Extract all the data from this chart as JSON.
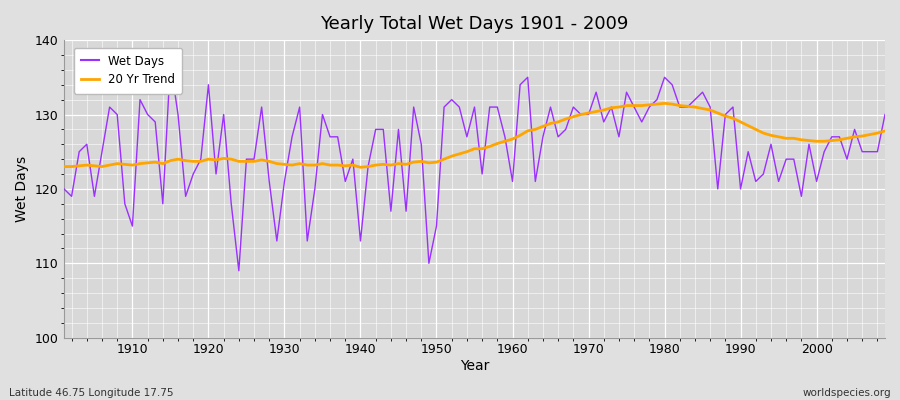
{
  "title": "Yearly Total Wet Days 1901 - 2009",
  "xlabel": "Year",
  "ylabel": "Wet Days",
  "ylim": [
    100,
    140
  ],
  "xlim": [
    1901,
    2009
  ],
  "yticks": [
    100,
    110,
    120,
    130,
    140
  ],
  "xticks": [
    1910,
    1920,
    1930,
    1940,
    1950,
    1960,
    1970,
    1980,
    1990,
    2000
  ],
  "wet_days_color": "#9B30FF",
  "trend_color": "#FFA500",
  "fig_bg_color": "#E0E0E0",
  "plot_bg_color": "#D8D8D8",
  "legend_labels": [
    "Wet Days",
    "20 Yr Trend"
  ],
  "footnote_left": "Latitude 46.75 Longitude 17.75",
  "footnote_right": "worldspecies.org",
  "years": [
    1901,
    1902,
    1903,
    1904,
    1905,
    1906,
    1907,
    1908,
    1909,
    1910,
    1911,
    1912,
    1913,
    1914,
    1915,
    1916,
    1917,
    1918,
    1919,
    1920,
    1921,
    1922,
    1923,
    1924,
    1925,
    1926,
    1927,
    1928,
    1929,
    1930,
    1931,
    1932,
    1933,
    1934,
    1935,
    1936,
    1937,
    1938,
    1939,
    1940,
    1941,
    1942,
    1943,
    1944,
    1945,
    1946,
    1947,
    1948,
    1949,
    1950,
    1951,
    1952,
    1953,
    1954,
    1955,
    1956,
    1957,
    1958,
    1959,
    1960,
    1961,
    1962,
    1963,
    1964,
    1965,
    1966,
    1967,
    1968,
    1969,
    1970,
    1971,
    1972,
    1973,
    1974,
    1975,
    1976,
    1977,
    1978,
    1979,
    1980,
    1981,
    1982,
    1983,
    1984,
    1985,
    1986,
    1987,
    1988,
    1989,
    1990,
    1991,
    1992,
    1993,
    1994,
    1995,
    1996,
    1997,
    1998,
    1999,
    2000,
    2001,
    2002,
    2003,
    2004,
    2005,
    2006,
    2007,
    2008,
    2009
  ],
  "wet_days": [
    120,
    119,
    125,
    126,
    119,
    125,
    131,
    130,
    118,
    115,
    132,
    130,
    129,
    118,
    137,
    130,
    119,
    122,
    124,
    134,
    122,
    130,
    118,
    109,
    124,
    124,
    131,
    121,
    113,
    121,
    127,
    131,
    113,
    120,
    130,
    127,
    127,
    121,
    124,
    113,
    123,
    128,
    128,
    117,
    128,
    117,
    131,
    126,
    110,
    115,
    131,
    132,
    131,
    127,
    131,
    122,
    131,
    131,
    127,
    121,
    134,
    135,
    121,
    127,
    131,
    127,
    128,
    131,
    130,
    130,
    133,
    129,
    131,
    127,
    133,
    131,
    129,
    131,
    132,
    135,
    134,
    131,
    131,
    132,
    133,
    131,
    120,
    130,
    131,
    120,
    125,
    121,
    122,
    126,
    121,
    124,
    124,
    119,
    126,
    121,
    125,
    127,
    127,
    124,
    128,
    125,
    125,
    125,
    130
  ],
  "trend": [
    123.0,
    123.0,
    123.1,
    123.2,
    123.1,
    123.0,
    123.2,
    123.4,
    123.3,
    123.2,
    123.4,
    123.5,
    123.6,
    123.4,
    123.8,
    124.0,
    123.8,
    123.7,
    123.7,
    124.0,
    123.9,
    124.1,
    124.0,
    123.7,
    123.7,
    123.7,
    123.9,
    123.7,
    123.4,
    123.3,
    123.2,
    123.4,
    123.2,
    123.2,
    123.4,
    123.2,
    123.2,
    123.1,
    123.2,
    122.9,
    123.0,
    123.2,
    123.3,
    123.2,
    123.4,
    123.3,
    123.6,
    123.7,
    123.5,
    123.6,
    124.0,
    124.4,
    124.7,
    125.0,
    125.4,
    125.4,
    125.7,
    126.1,
    126.4,
    126.7,
    127.2,
    127.8,
    128.0,
    128.4,
    128.8,
    129.0,
    129.4,
    129.7,
    130.0,
    130.2,
    130.4,
    130.6,
    130.9,
    131.0,
    131.2,
    131.2,
    131.2,
    131.3,
    131.4,
    131.5,
    131.4,
    131.2,
    131.1,
    131.0,
    130.8,
    130.6,
    130.2,
    129.8,
    129.5,
    129.0,
    128.5,
    128.0,
    127.5,
    127.2,
    127.0,
    126.8,
    126.8,
    126.6,
    126.5,
    126.4,
    126.4,
    126.5,
    126.6,
    126.8,
    127.0,
    127.1,
    127.3,
    127.5,
    127.8
  ]
}
